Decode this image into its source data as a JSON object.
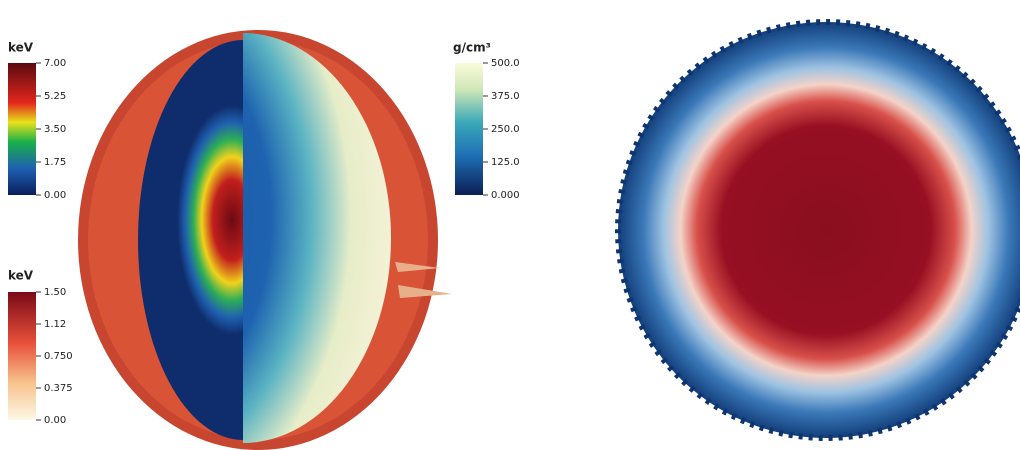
{
  "colorbars": [
    {
      "unit": "keV",
      "ticks": [
        "7.00",
        "5.25",
        "3.50",
        "1.75",
        "0.00"
      ]
    },
    {
      "unit": "keV",
      "ticks": [
        "1.50",
        "1.12",
        "0.750",
        "0.375",
        "0.00"
      ]
    },
    {
      "unit": "g/cm³",
      "ticks": [
        "500.0",
        "375.0",
        "250.0",
        "125.0",
        "0.000"
      ]
    }
  ]
}
